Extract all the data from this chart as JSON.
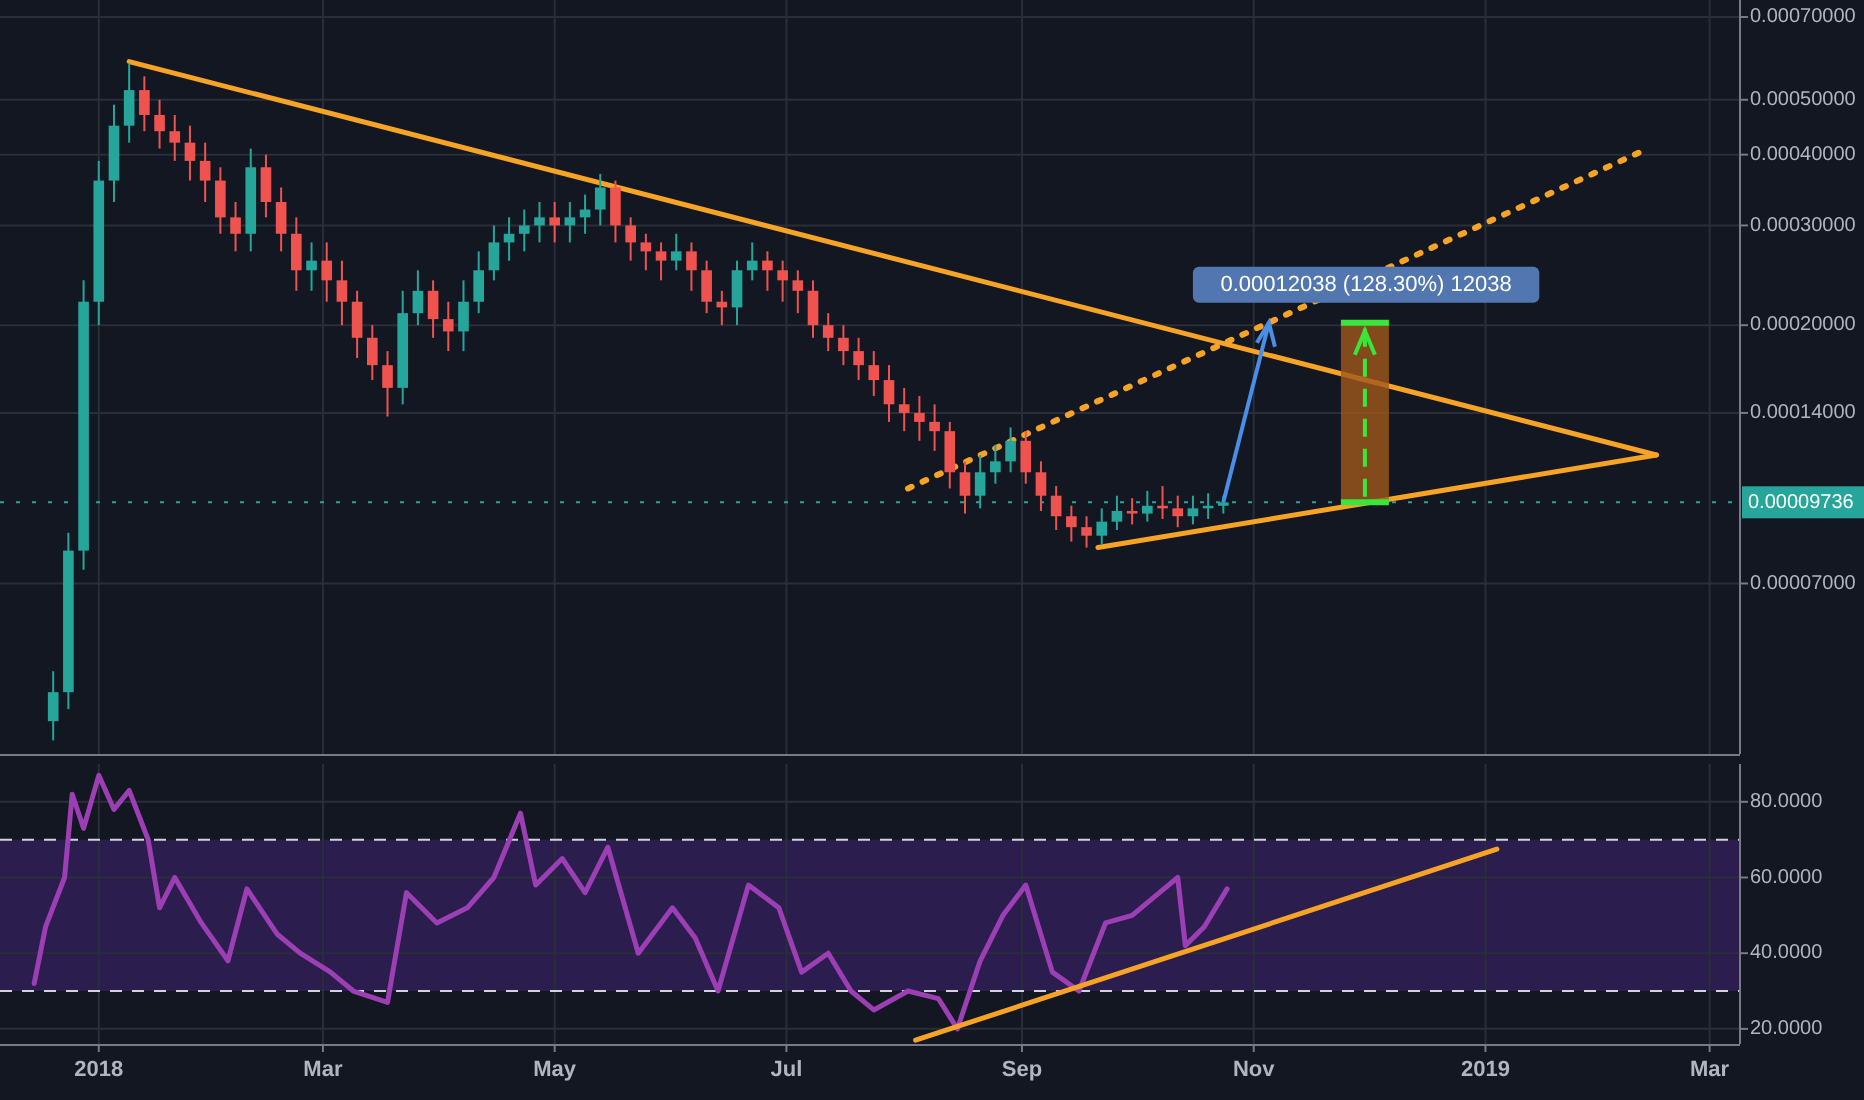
{
  "chart_data": [
    {
      "type": "candlestick",
      "log": true,
      "grid": true,
      "tick_labels": "y",
      "xlim": [
        "2017-12-06",
        "2019-03-09"
      ],
      "xticks": [
        {
          "value": "2018-01-01",
          "label": null
        },
        {
          "value": "2018-03-01",
          "label": null
        },
        {
          "value": "2018-05-01",
          "label": null
        },
        {
          "value": "2018-07-01",
          "label": null
        },
        {
          "value": "2018-09-01",
          "label": null
        },
        {
          "value": "2018-11-01",
          "label": null
        },
        {
          "value": "2019-01-01",
          "label": null
        },
        {
          "value": "2019-03-01",
          "label": null
        }
      ],
      "ylim": [
        3.5e-05,
        0.00075
      ],
      "yticks": [
        {
          "value": 7e-05,
          "label": "0.00007000"
        },
        {
          "value": 0.00014,
          "label": "0.00014000"
        },
        {
          "value": 0.0002,
          "label": "0.00020000"
        },
        {
          "value": 0.0003,
          "label": "0.00030000"
        },
        {
          "value": 0.0004,
          "label": "0.00040000"
        },
        {
          "value": 0.0005,
          "label": "0.00050000"
        },
        {
          "value": 0.0007,
          "label": "0.00070000"
        }
      ],
      "ref_lines": [
        {
          "axis": "y",
          "value": 9.736e-05,
          "label": "0.00009736",
          "color": "#26a69a",
          "line_style": "dotted"
        }
      ],
      "annotations": [
        {
          "text": "0.00012038 (128.30%) 12038",
          "x": "2018-11-05",
          "y": 0.000202
        }
      ],
      "series": [
        {
          "x": [
            "2017-12-20",
            "2017-12-24",
            "2017-12-28",
            "2018-01-01",
            "2018-01-05",
            "2018-01-09",
            "2018-01-13",
            "2018-01-17",
            "2018-01-21",
            "2018-01-25",
            "2018-01-29",
            "2018-02-02",
            "2018-02-06",
            "2018-02-10",
            "2018-02-14",
            "2018-02-18",
            "2018-02-22",
            "2018-02-26",
            "2018-03-02",
            "2018-03-06",
            "2018-03-10",
            "2018-03-14",
            "2018-03-18",
            "2018-03-22",
            "2018-03-26",
            "2018-03-30",
            "2018-04-03",
            "2018-04-07",
            "2018-04-11",
            "2018-04-15",
            "2018-04-19",
            "2018-04-23",
            "2018-04-27",
            "2018-05-01",
            "2018-05-05",
            "2018-05-09",
            "2018-05-13",
            "2018-05-17",
            "2018-05-21",
            "2018-05-25",
            "2018-05-29",
            "2018-06-02",
            "2018-06-06",
            "2018-06-10",
            "2018-06-14",
            "2018-06-18",
            "2018-06-22",
            "2018-06-26",
            "2018-06-30",
            "2018-07-04",
            "2018-07-08",
            "2018-07-12",
            "2018-07-16",
            "2018-07-20",
            "2018-07-24",
            "2018-07-28",
            "2018-08-01",
            "2018-08-05",
            "2018-08-09",
            "2018-08-13",
            "2018-08-17",
            "2018-08-21",
            "2018-08-25",
            "2018-08-29",
            "2018-09-02",
            "2018-09-06",
            "2018-09-10",
            "2018-09-14",
            "2018-09-18",
            "2018-09-22",
            "2018-09-26",
            "2018-09-30",
            "2018-10-04",
            "2018-10-08",
            "2018-10-12",
            "2018-10-16",
            "2018-10-20",
            "2018-10-24"
          ],
          "ohlc": [
            [
              4e-05,
              4.9e-05,
              3.7e-05,
              4.5e-05
            ],
            [
              4.5e-05,
              8.6e-05,
              4.2e-05,
              8e-05
            ],
            [
              8e-05,
              0.00024,
              7.4e-05,
              0.00022
            ],
            [
              0.00022,
              0.00039,
              0.0002,
              0.00036
            ],
            [
              0.00036,
              0.00049,
              0.00033,
              0.00045
            ],
            [
              0.00045,
              0.00058,
              0.00042,
              0.00052
            ],
            [
              0.00052,
              0.00055,
              0.00044,
              0.00047
            ],
            [
              0.00047,
              0.0005,
              0.00041,
              0.00044
            ],
            [
              0.00044,
              0.00047,
              0.00039,
              0.00042
            ],
            [
              0.00042,
              0.00045,
              0.00036,
              0.00039
            ],
            [
              0.00039,
              0.00042,
              0.00033,
              0.00036
            ],
            [
              0.00036,
              0.00038,
              0.00029,
              0.00031
            ],
            [
              0.00031,
              0.00033,
              0.00027,
              0.00029
            ],
            [
              0.00029,
              0.00041,
              0.00027,
              0.00038
            ],
            [
              0.00038,
              0.0004,
              0.00031,
              0.00033
            ],
            [
              0.00033,
              0.00035,
              0.00027,
              0.00029
            ],
            [
              0.00029,
              0.00031,
              0.00023,
              0.00025
            ],
            [
              0.00025,
              0.00028,
              0.00023,
              0.00026
            ],
            [
              0.00026,
              0.00028,
              0.00022,
              0.00024
            ],
            [
              0.00024,
              0.00026,
              0.0002,
              0.00022
            ],
            [
              0.00022,
              0.00023,
              0.000175,
              0.00019
            ],
            [
              0.00019,
              0.0002,
              0.00016,
              0.00017
            ],
            [
              0.00017,
              0.00018,
              0.000138,
              0.000155
            ],
            [
              0.000155,
              0.00023,
              0.000145,
              0.00021
            ],
            [
              0.00021,
              0.00025,
              0.0002,
              0.00023
            ],
            [
              0.00023,
              0.00024,
              0.00019,
              0.000205
            ],
            [
              0.000205,
              0.00022,
              0.00018,
              0.000195
            ],
            [
              0.000195,
              0.00024,
              0.00018,
              0.00022
            ],
            [
              0.00022,
              0.00027,
              0.00021,
              0.00025
            ],
            [
              0.00025,
              0.0003,
              0.00024,
              0.00028
            ],
            [
              0.00028,
              0.00031,
              0.00026,
              0.00029
            ],
            [
              0.00029,
              0.00032,
              0.00027,
              0.0003
            ],
            [
              0.0003,
              0.00033,
              0.00028,
              0.00031
            ],
            [
              0.00031,
              0.00033,
              0.00028,
              0.0003
            ],
            [
              0.0003,
              0.00033,
              0.00028,
              0.00031
            ],
            [
              0.00031,
              0.00034,
              0.00029,
              0.00032
            ],
            [
              0.00032,
              0.00037,
              0.0003,
              0.00035
            ],
            [
              0.00035,
              0.00036,
              0.00028,
              0.0003
            ],
            [
              0.0003,
              0.00031,
              0.00026,
              0.00028
            ],
            [
              0.00028,
              0.00029,
              0.00025,
              0.00027
            ],
            [
              0.00027,
              0.00028,
              0.00024,
              0.00026
            ],
            [
              0.00026,
              0.00029,
              0.00025,
              0.00027
            ],
            [
              0.00027,
              0.00028,
              0.00023,
              0.00025
            ],
            [
              0.00025,
              0.00026,
              0.00021,
              0.00022
            ],
            [
              0.00022,
              0.00023,
              0.0002,
              0.000215
            ],
            [
              0.000215,
              0.00026,
              0.0002,
              0.00025
            ],
            [
              0.00025,
              0.00028,
              0.00024,
              0.00026
            ],
            [
              0.00026,
              0.00027,
              0.00023,
              0.00025
            ],
            [
              0.00025,
              0.00026,
              0.00022,
              0.00024
            ],
            [
              0.00024,
              0.00025,
              0.00021,
              0.00023
            ],
            [
              0.00023,
              0.00024,
              0.00019,
              0.0002
            ],
            [
              0.0002,
              0.00021,
              0.00018,
              0.00019
            ],
            [
              0.00019,
              0.0002,
              0.00017,
              0.00018
            ],
            [
              0.00018,
              0.00019,
              0.00016,
              0.00017
            ],
            [
              0.00017,
              0.00018,
              0.00015,
              0.00016
            ],
            [
              0.00016,
              0.00017,
              0.000135,
              0.000145
            ],
            [
              0.000145,
              0.000155,
              0.00013,
              0.00014
            ],
            [
              0.00014,
              0.00015,
              0.000125,
              0.000135
            ],
            [
              0.000135,
              0.000145,
              0.00012,
              0.00013
            ],
            [
              0.00013,
              0.000135,
              0.000103,
              0.00011
            ],
            [
              0.00011,
              0.000115,
              9.3e-05,
              0.0001
            ],
            [
              0.0001,
              0.000118,
              9.5e-05,
              0.00011
            ],
            [
              0.00011,
              0.000123,
              0.000105,
              0.000115
            ],
            [
              0.000115,
              0.000132,
              0.00011,
              0.000125
            ],
            [
              0.000125,
              0.00013,
              0.000105,
              0.00011
            ],
            [
              0.00011,
              0.000115,
              9.4e-05,
              0.0001
            ],
            [
              0.0001,
              0.000104,
              8.7e-05,
              9.2e-05
            ],
            [
              9.2e-05,
              9.6e-05,
              8.3e-05,
              8.8e-05
            ],
            [
              8.8e-05,
              9.2e-05,
              8.1e-05,
              8.5e-05
            ],
            [
              8.5e-05,
              9.5e-05,
              8.2e-05,
              9e-05
            ],
            [
              9e-05,
              0.0001,
              8.7e-05,
              9.4e-05
            ],
            [
              9.4e-05,
              9.9e-05,
              8.9e-05,
              9.3e-05
            ],
            [
              9.3e-05,
              0.000102,
              9e-05,
              9.6e-05
            ],
            [
              9.6e-05,
              0.000104,
              9.1e-05,
              9.5e-05
            ],
            [
              9.5e-05,
              0.0001,
              8.8e-05,
              9.2e-05
            ],
            [
              9.2e-05,
              0.0001,
              8.9e-05,
              9.5e-05
            ],
            [
              9.5e-05,
              0.000101,
              9.1e-05,
              9.6e-05
            ],
            [
              9.6e-05,
              0.0001,
              9.3e-05,
              9.736e-05
            ]
          ],
          "colors": [
            "#26a69a",
            "#26a69a",
            "#26a69a",
            "#26a69a",
            "#26a69a",
            "#26a69a",
            "#ef5350",
            "#ef5350",
            "#ef5350",
            "#ef5350",
            "#ef5350",
            "#ef5350",
            "#ef5350",
            "#26a69a",
            "#ef5350",
            "#ef5350",
            "#ef5350",
            "#26a69a",
            "#ef5350",
            "#ef5350",
            "#ef5350",
            "#ef5350",
            "#ef5350",
            "#26a69a",
            "#26a69a",
            "#ef5350",
            "#ef5350",
            "#26a69a",
            "#26a69a",
            "#26a69a",
            "#26a69a",
            "#26a69a",
            "#26a69a",
            "#ef5350",
            "#26a69a",
            "#26a69a",
            "#26a69a",
            "#ef5350",
            "#ef5350",
            "#ef5350",
            "#ef5350",
            "#26a69a",
            "#ef5350",
            "#ef5350",
            "#ef5350",
            "#26a69a",
            "#26a69a",
            "#ef5350",
            "#ef5350",
            "#ef5350",
            "#ef5350",
            "#ef5350",
            "#ef5350",
            "#ef5350",
            "#ef5350",
            "#ef5350",
            "#ef5350",
            "#ef5350",
            "#ef5350",
            "#ef5350",
            "#ef5350",
            "#26a69a",
            "#26a69a",
            "#26a69a",
            "#ef5350",
            "#ef5350",
            "#ef5350",
            "#ef5350",
            "#ef5350",
            "#26a69a",
            "#26a69a",
            "#ef5350",
            "#26a69a",
            "#ef5350",
            "#ef5350",
            "#26a69a",
            "#26a69a",
            "#26a69a"
          ]
        },
        {
          "type": "line",
          "x": [
            "2018-01-09",
            "2019-02-15"
          ],
          "values": [
            0.000584,
            0.000118
          ],
          "color": "#f7a325"
        },
        {
          "type": "line",
          "x": [
            "2018-09-21",
            "2019-02-15"
          ],
          "values": [
            8.1e-05,
            0.000118
          ],
          "color": "#f7a325"
        },
        {
          "type": "line",
          "x": [
            "2018-08-02",
            "2019-02-12"
          ],
          "values": [
            0.000103,
            0.000408
          ],
          "color": "#f7a325",
          "line_style": "dotted"
        }
      ]
    },
    {
      "type": "line",
      "grid": true,
      "xlim": [
        "2017-12-06",
        "2019-03-09"
      ],
      "xticks": [
        {
          "value": "2018-01-01",
          "label": "2018"
        },
        {
          "value": "2018-03-01",
          "label": "Mar"
        },
        {
          "value": "2018-05-01",
          "label": "May"
        },
        {
          "value": "2018-07-01",
          "label": "Jul"
        },
        {
          "value": "2018-09-01",
          "label": "Sep"
        },
        {
          "value": "2018-11-01",
          "label": "Nov"
        },
        {
          "value": "2019-01-01",
          "label": "2019"
        },
        {
          "value": "2019-03-01",
          "label": "Mar"
        }
      ],
      "ylim": [
        16,
        90
      ],
      "yticks": [
        {
          "value": 20,
          "label": "20.0000"
        },
        {
          "value": 40,
          "label": "40.0000"
        },
        {
          "value": 60,
          "label": "60.0000"
        },
        {
          "value": 80,
          "label": "80.0000"
        }
      ],
      "bands": [
        {
          "axis": "y",
          "from": 30,
          "to": 70,
          "color": "#2b1d4d"
        }
      ],
      "ref_lines": [
        {
          "axis": "y",
          "value": 70,
          "color": "#d1d4dc",
          "line_style": "dashed"
        },
        {
          "axis": "y",
          "value": 30,
          "color": "#d1d4dc",
          "line_style": "dashed"
        }
      ],
      "series": [
        {
          "color": "#9c3fb5",
          "x": [
            "2017-12-15",
            "2017-12-18",
            "2017-12-23",
            "2017-12-25",
            "2017-12-28",
            "2018-01-01",
            "2018-01-05",
            "2018-01-09",
            "2018-01-14",
            "2018-01-17",
            "2018-01-21",
            "2018-01-28",
            "2018-02-04",
            "2018-02-09",
            "2018-02-17",
            "2018-02-23",
            "2018-03-03",
            "2018-03-09",
            "2018-03-18",
            "2018-03-23",
            "2018-03-31",
            "2018-04-08",
            "2018-04-15",
            "2018-04-22",
            "2018-04-26",
            "2018-05-03",
            "2018-05-09",
            "2018-05-15",
            "2018-05-23",
            "2018-06-01",
            "2018-06-07",
            "2018-06-13",
            "2018-06-21",
            "2018-06-29",
            "2018-07-05",
            "2018-07-12",
            "2018-07-18",
            "2018-07-24",
            "2018-08-02",
            "2018-08-10",
            "2018-08-15",
            "2018-08-21",
            "2018-08-27",
            "2018-09-02",
            "2018-09-09",
            "2018-09-16",
            "2018-09-23",
            "2018-09-30",
            "2018-10-06",
            "2018-10-12",
            "2018-10-14",
            "2018-10-19",
            "2018-10-25"
          ],
          "values": [
            32,
            47,
            60,
            82,
            73,
            87,
            78,
            83,
            70,
            52,
            60,
            48,
            38,
            57,
            45,
            40,
            35,
            30,
            27,
            56,
            48,
            52,
            60,
            77,
            58,
            65,
            56,
            68,
            40,
            52,
            44,
            30,
            58,
            52,
            35,
            40,
            30,
            25,
            30,
            28,
            20,
            38,
            50,
            58,
            35,
            30,
            48,
            50,
            55,
            60,
            42,
            47,
            57
          ]
        },
        {
          "type": "line",
          "color": "#f7a325",
          "x": [
            "2018-08-04",
            "2019-01-04"
          ],
          "values": [
            17,
            67.5
          ]
        }
      ]
    }
  ]
}
